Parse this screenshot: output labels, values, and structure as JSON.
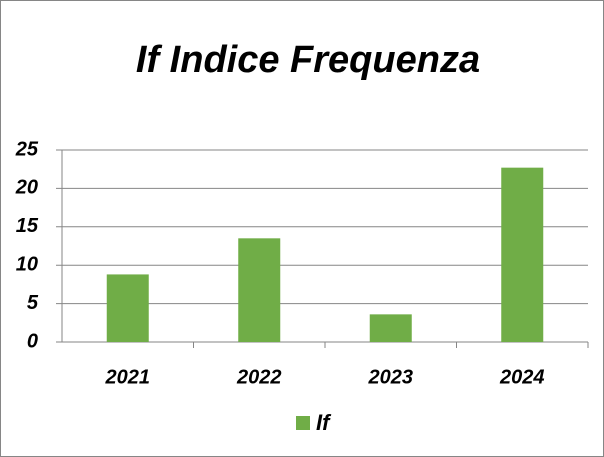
{
  "chart_data": {
    "type": "bar",
    "title": "If Indice Frequenza",
    "categories": [
      "2021",
      "2022",
      "2023",
      "2024"
    ],
    "series": [
      {
        "name": "If",
        "color": "#70ad47",
        "values": [
          8.8,
          13.5,
          3.6,
          22.7
        ]
      }
    ],
    "ylim": [
      0,
      25
    ],
    "yticks": [
      0,
      5,
      10,
      15,
      20,
      25
    ],
    "grid": true,
    "legend": "bottom"
  }
}
